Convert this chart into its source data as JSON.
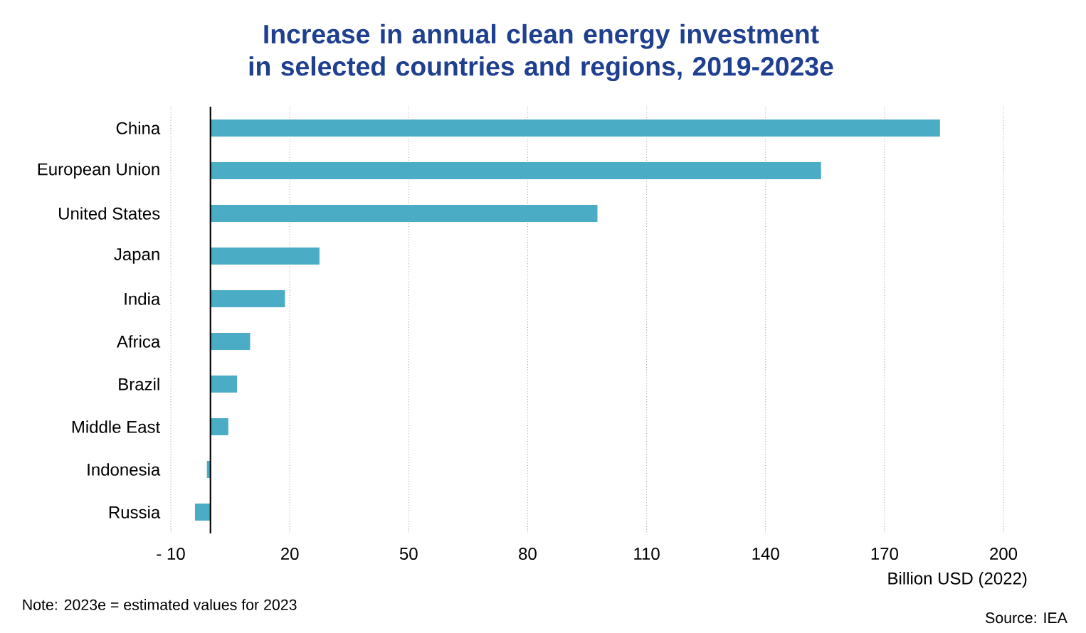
{
  "chart_data": {
    "type": "bar",
    "orientation": "horizontal",
    "title": "Increase in annual clean energy investment in selected countries and regions, 2019-2023e",
    "categories": [
      "China",
      "European Union",
      "United States",
      "Japan",
      "India",
      "Africa",
      "Brazil",
      "Middle East",
      "Indonesia",
      "Russia"
    ],
    "values": [
      184,
      154,
      97.6,
      27.5,
      18.8,
      10,
      6.7,
      4.5,
      -0.9,
      -3.9
    ],
    "color": "#4bacc6",
    "xlim": [
      -10,
      200
    ],
    "xticks": [
      {
        "value": -10,
        "label": "- 10"
      },
      20,
      50,
      80,
      110,
      140,
      170,
      200
    ],
    "xlabel": "Billion USD (2022)",
    "grid": "x",
    "annotations": [
      "Note: 2023e = estimated values for 2023",
      "Source: IEA"
    ]
  }
}
